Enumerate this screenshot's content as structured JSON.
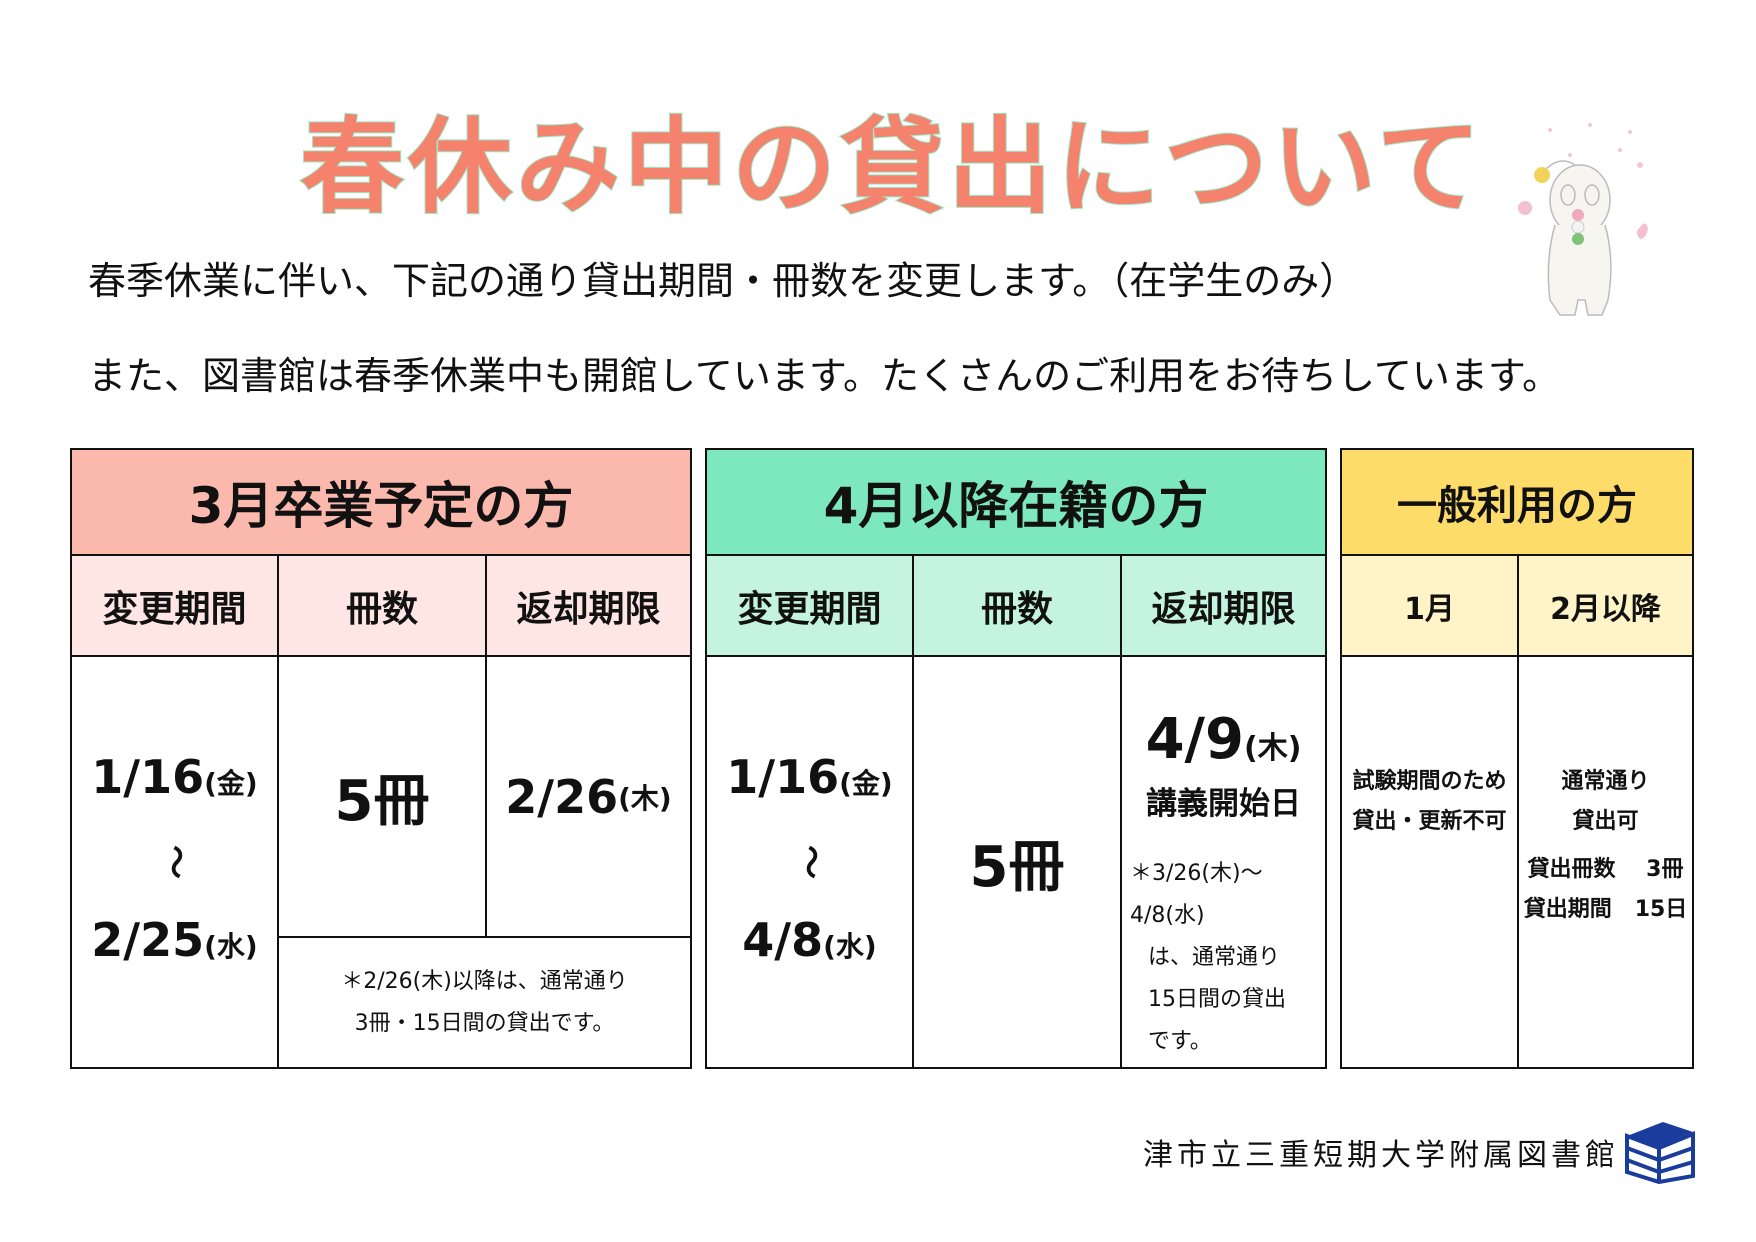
{
  "title": "春休み中の貸出について",
  "intro": [
    "春季休業に伴い、下記の通り貸出期間・冊数を変更します。（在学生のみ）",
    "また、図書館は春季休業中も開館しています。たくさんのご利用をお待ちしています。"
  ],
  "colors": {
    "title": "#f4826c",
    "graduating": "#fbb8ad",
    "graduating_sub": "#fde6e4",
    "enrolled": "#7de8bd",
    "enrolled_sub": "#c4f4e0",
    "general": "#fddc6a",
    "general_sub": "#fff3c8",
    "logo": "#1a3c9c"
  },
  "graduating": {
    "header": "3月卒業予定の方",
    "cols": [
      "変更期間",
      "冊数",
      "返却期限"
    ],
    "period_start": "1/16",
    "period_start_day": "(金)",
    "tilde": "〜",
    "period_end": "2/25",
    "period_end_day": "(水)",
    "count": "5冊",
    "due": "2/26",
    "due_day": "(木)",
    "note": [
      "＊2/26(木)以降は、通常通り",
      "3冊・15日間の貸出です。"
    ]
  },
  "enrolled": {
    "header": "4月以降在籍の方",
    "cols": [
      "変更期間",
      "冊数",
      "返却期限"
    ],
    "period_start": "1/16",
    "period_start_day": "(金)",
    "tilde": "〜",
    "period_end": "4/8",
    "period_end_day": "(水)",
    "count": "5冊",
    "due": "4/9",
    "due_day": "(木)",
    "due_label": "講義開始日",
    "note": [
      "＊3/26(木)〜4/8(水)",
      "は、通常通り",
      "15日間の貸出",
      "です。"
    ]
  },
  "general": {
    "header": "一般利用の方",
    "cols": [
      "1月",
      "2月以降"
    ],
    "jan": [
      "試験期間のため",
      "貸出・更新不可"
    ],
    "feb": [
      "通常通り",
      "貸出可"
    ],
    "feb_count_label": "貸出冊数",
    "feb_count": "3冊",
    "feb_period_label": "貸出期間",
    "feb_period": "15日"
  },
  "footer": "津市立三重短期大学附属図書館",
  "icons": {
    "mascot": "mascot-with-dango-illustration",
    "logo": "stacked-books-logo-icon"
  }
}
